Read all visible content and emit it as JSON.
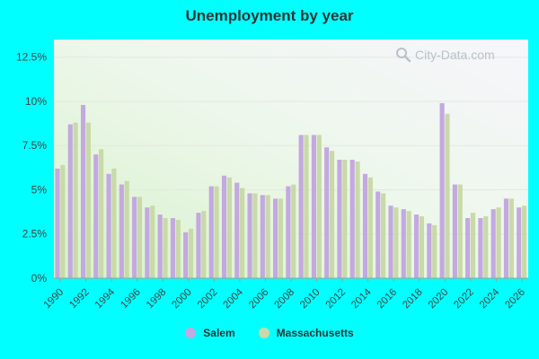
{
  "colors": {
    "background": "#00ffff",
    "salem": "#c2a9df",
    "massachusetts": "#c9d9a8",
    "title": "#333333"
  },
  "watermark": {
    "text": "City-Data.com",
    "icon": "magnifier-icon"
  },
  "chart_data": {
    "type": "bar",
    "title": "Unemployment by year",
    "ylim": [
      0,
      13.5
    ],
    "yticks": [
      "0%",
      "2.5%",
      "5%",
      "7.5%",
      "10%",
      "12.5%"
    ],
    "ytick_values": [
      0,
      2.5,
      5,
      7.5,
      10,
      12.5
    ],
    "xtick_labels": [
      "1990",
      "1992",
      "1994",
      "1996",
      "1998",
      "2000",
      "2002",
      "2004",
      "2006",
      "2008",
      "2010",
      "2012",
      "2014",
      "2016",
      "2018",
      "2020",
      "2022",
      "2024",
      "2026"
    ],
    "grid": true,
    "legend_position": "bottom",
    "categories": [
      "1990",
      "1991",
      "1992",
      "1993",
      "1994",
      "1995",
      "1996",
      "1997",
      "1998",
      "1999",
      "2000",
      "2001",
      "2002",
      "2003",
      "2004",
      "2005",
      "2006",
      "2007",
      "2008",
      "2009",
      "2010",
      "2011",
      "2012",
      "2013",
      "2014",
      "2015",
      "2016",
      "2017",
      "2018",
      "2019",
      "2020",
      "2021",
      "2022",
      "2023",
      "2024",
      "2025",
      "2026"
    ],
    "series": [
      {
        "name": "Salem",
        "color": "#c2a9df",
        "values": [
          6.2,
          8.7,
          9.8,
          7.0,
          5.9,
          5.3,
          4.6,
          4.0,
          3.6,
          3.4,
          2.6,
          3.7,
          5.2,
          5.8,
          5.4,
          4.8,
          4.7,
          4.5,
          5.2,
          8.1,
          8.1,
          7.4,
          6.7,
          6.7,
          5.9,
          4.9,
          4.1,
          3.9,
          3.6,
          3.1,
          9.9,
          5.3,
          3.4,
          3.4,
          3.9,
          4.5,
          4.0
        ]
      },
      {
        "name": "Massachusetts",
        "color": "#c9d9a8",
        "values": [
          6.4,
          8.8,
          8.8,
          7.3,
          6.2,
          5.5,
          4.6,
          4.1,
          3.4,
          3.3,
          2.8,
          3.8,
          5.2,
          5.7,
          5.1,
          4.8,
          4.7,
          4.5,
          5.3,
          8.1,
          8.1,
          7.2,
          6.7,
          6.6,
          5.7,
          4.8,
          4.0,
          3.8,
          3.5,
          3.0,
          9.3,
          5.3,
          3.7,
          3.5,
          4.0,
          4.5,
          4.1
        ]
      }
    ]
  }
}
